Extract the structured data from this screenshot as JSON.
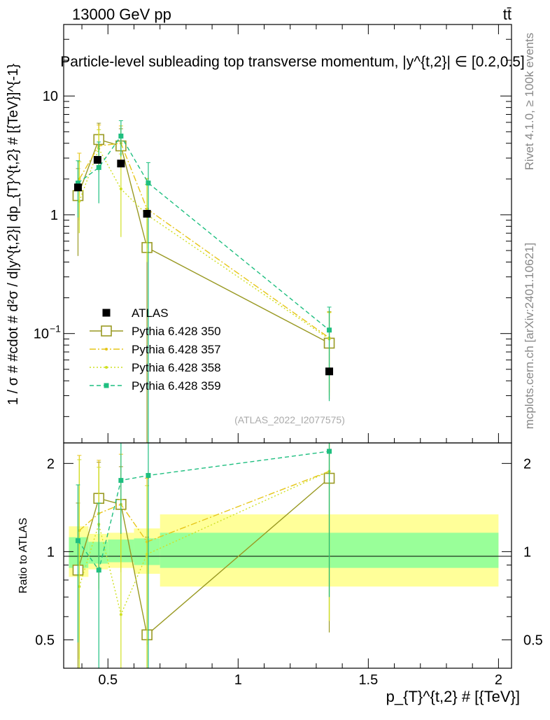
{
  "header": {
    "left": "13000 GeV pp",
    "right": "tt̄"
  },
  "side_labels": {
    "rivet": "Rivet 4.1.0, ≥ 100k events",
    "mcplots": "mcplots.cern.ch [arXiv:2401.10621]"
  },
  "colors": {
    "atlas": "#000000",
    "p350": "#999922",
    "p357": "#e6c619",
    "p358": "#cfe022",
    "p359": "#1fbf80",
    "band_inner": "#99ff99",
    "band_outer": "#ffff99"
  },
  "chart_data": {
    "type": "line",
    "title": "Particle-level subleading top transverse momentum, |y^{t,2}| ∈ [0.2,0.5]",
    "watermark": "(ATLAS_2022_I2077575)",
    "xlabel": "p_{T}^{t,2} # [{TeV}]",
    "ylabel": "1 / σ # #cdot # d²σ / d|y^{t,2}| dp_{T}^{t,2} # [{TeV}]^{-1}",
    "ratio_ylabel": "Ratio to ATLAS",
    "xlim": [
      0.33,
      2.05
    ],
    "ylim": [
      0.012,
      40
    ],
    "ratio_ylim": [
      0.4,
      2.35
    ],
    "yscale": "log",
    "x_ticks": [
      {
        "v": 0.5,
        "label": "0.5"
      },
      {
        "v": 1,
        "label": "1"
      },
      {
        "v": 1.5,
        "label": "1.5"
      },
      {
        "v": 2,
        "label": "2"
      }
    ],
    "y_ticks": [
      {
        "v": 0.1,
        "label": "10",
        "exp": "−1"
      },
      {
        "v": 1,
        "label": "1",
        "exp": ""
      },
      {
        "v": 10,
        "label": "10",
        "exp": ""
      }
    ],
    "ratio_ticks": [
      {
        "v": 0.5,
        "label": "0.5"
      },
      {
        "v": 1,
        "label": "1"
      },
      {
        "v": 2,
        "label": "2"
      }
    ],
    "bins": [
      {
        "lo": 0.35,
        "hi": 0.425,
        "in_lo": 0.88,
        "in_hi": 1.12,
        "out_lo": 0.82,
        "out_hi": 1.22
      },
      {
        "lo": 0.425,
        "hi": 0.5,
        "in_lo": 0.91,
        "in_hi": 1.08,
        "out_lo": 0.87,
        "out_hi": 1.15
      },
      {
        "lo": 0.5,
        "hi": 0.6,
        "in_lo": 0.92,
        "in_hi": 1.1,
        "out_lo": 0.88,
        "out_hi": 1.16
      },
      {
        "lo": 0.6,
        "hi": 0.7,
        "in_lo": 0.9,
        "in_hi": 1.11,
        "out_lo": 0.84,
        "out_hi": 1.2
      },
      {
        "lo": 0.7,
        "hi": 2.0,
        "in_lo": 0.88,
        "in_hi": 1.16,
        "out_lo": 0.76,
        "out_hi": 1.34
      }
    ],
    "reference": {
      "name": "ATLAS",
      "x": [
        0.385,
        0.46,
        0.55,
        0.65,
        1.35
      ],
      "y": [
        1.7,
        2.9,
        2.7,
        1.02,
        0.048
      ]
    },
    "series": [
      {
        "name": "Pythia 6.428 350",
        "key": "p350",
        "marker": "open-square",
        "dash": "",
        "x": [
          0.385,
          0.465,
          0.55,
          0.65,
          1.35
        ],
        "y": [
          1.45,
          4.3,
          3.8,
          0.53,
          0.083
        ],
        "err_lo": [
          1.0,
          1.4,
          1.3,
          0.53,
          0.055
        ],
        "err_hi": [
          1.0,
          1.6,
          1.5,
          0.6,
          0.07
        ],
        "ratio": [
          0.865,
          1.52,
          1.45,
          0.52,
          1.78
        ],
        "rerr_lo": [
          0.6,
          0.5,
          0.5,
          0.52,
          1.25
        ],
        "rerr_hi": [
          0.6,
          0.5,
          0.5,
          0.6,
          0.8
        ]
      },
      {
        "name": "Pythia 6.428 357",
        "key": "p357",
        "marker": "dot",
        "dash": "9,3,2,3",
        "x": [
          0.39,
          0.465,
          0.55,
          0.65,
          1.35
        ],
        "y": [
          2.0,
          3.8,
          4.0,
          1.12,
          0.092
        ],
        "err_lo": [
          1.1,
          1.5,
          1.5,
          0.6,
          0.06
        ],
        "err_hi": [
          1.3,
          1.9,
          1.6,
          0.9,
          0.06
        ],
        "ratio": [
          1.18,
          1.35,
          1.45,
          1.08,
          1.88
        ],
        "rerr_lo": [
          0.75,
          0.6,
          0.6,
          0.6,
          1.3
        ],
        "rerr_hi": [
          0.95,
          0.7,
          0.7,
          0.7,
          0.6
        ]
      },
      {
        "name": "Pythia 6.428 358",
        "key": "p358",
        "marker": "dot",
        "dash": "2,3",
        "x": [
          0.39,
          0.465,
          0.55,
          0.65,
          1.35
        ],
        "y": [
          1.3,
          3.6,
          1.65,
          1.0,
          0.09
        ],
        "err_lo": [
          0.6,
          1.3,
          1.0,
          0.6,
          0.06
        ],
        "err_hi": [
          1.5,
          1.6,
          1.6,
          0.8,
          0.06
        ],
        "ratio": [
          0.76,
          1.24,
          0.61,
          0.98,
          1.88
        ],
        "rerr_lo": [
          0.4,
          0.5,
          0.35,
          0.6,
          1.3
        ],
        "rerr_hi": [
          1.3,
          0.7,
          0.9,
          0.7,
          0.5
        ]
      },
      {
        "name": "Pythia 6.428 359",
        "key": "p359",
        "marker": "filled-square",
        "dash": "6,4",
        "x": [
          0.385,
          0.465,
          0.55,
          0.655,
          1.35
        ],
        "y": [
          1.85,
          2.5,
          4.6,
          1.85,
          0.107
        ],
        "err_lo": [
          0.9,
          1.25,
          1.5,
          1.85,
          0.08
        ],
        "err_hi": [
          1.0,
          1.6,
          1.6,
          0.9,
          0.06
        ],
        "ratio": [
          1.09,
          0.865,
          1.75,
          1.82,
          2.2
        ],
        "rerr_lo": [
          0.6,
          0.6,
          0.6,
          1.82,
          1.5
        ],
        "rerr_hi": [
          0.6,
          0.6,
          0.6,
          0.9,
          0.2
        ]
      }
    ]
  }
}
